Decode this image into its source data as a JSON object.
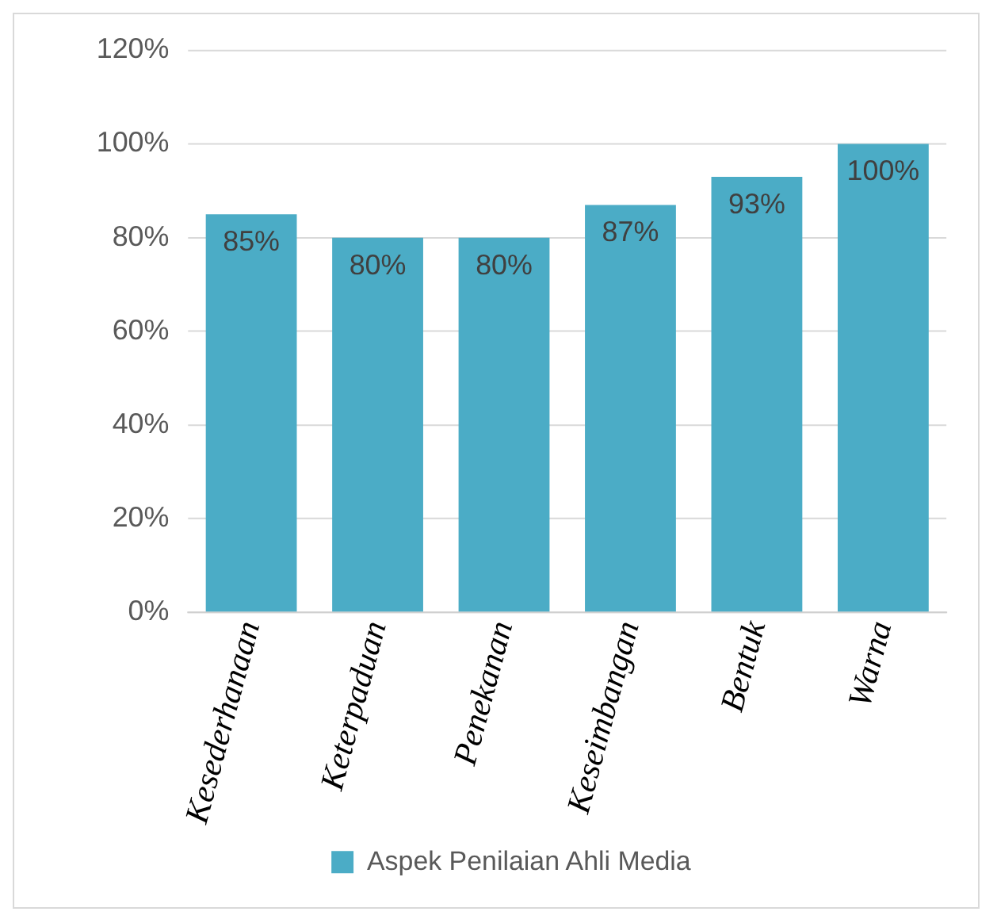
{
  "chart_data": {
    "type": "bar",
    "categories": [
      "Kesederhanaan",
      "Keterpaduan",
      "Penekanan",
      "Keseimbangan",
      "Bentuk",
      "Warna"
    ],
    "series": [
      {
        "name": "Aspek Penilaian Ahli Media",
        "color": "#4bacc6",
        "values": [
          85,
          80,
          80,
          87,
          93,
          100
        ],
        "value_labels": [
          "85%",
          "80%",
          "80%",
          "87%",
          "93%",
          "100%"
        ]
      }
    ],
    "ylim": [
      0,
      120
    ],
    "yticks": [
      {
        "value": 0,
        "label": "0%"
      },
      {
        "value": 20,
        "label": "20%"
      },
      {
        "value": 40,
        "label": "40%"
      },
      {
        "value": 60,
        "label": "60%"
      },
      {
        "value": 80,
        "label": "80%"
      },
      {
        "value": 100,
        "label": "100%"
      },
      {
        "value": 120,
        "label": "120%"
      }
    ],
    "grid": "y",
    "legend": "bottom"
  }
}
